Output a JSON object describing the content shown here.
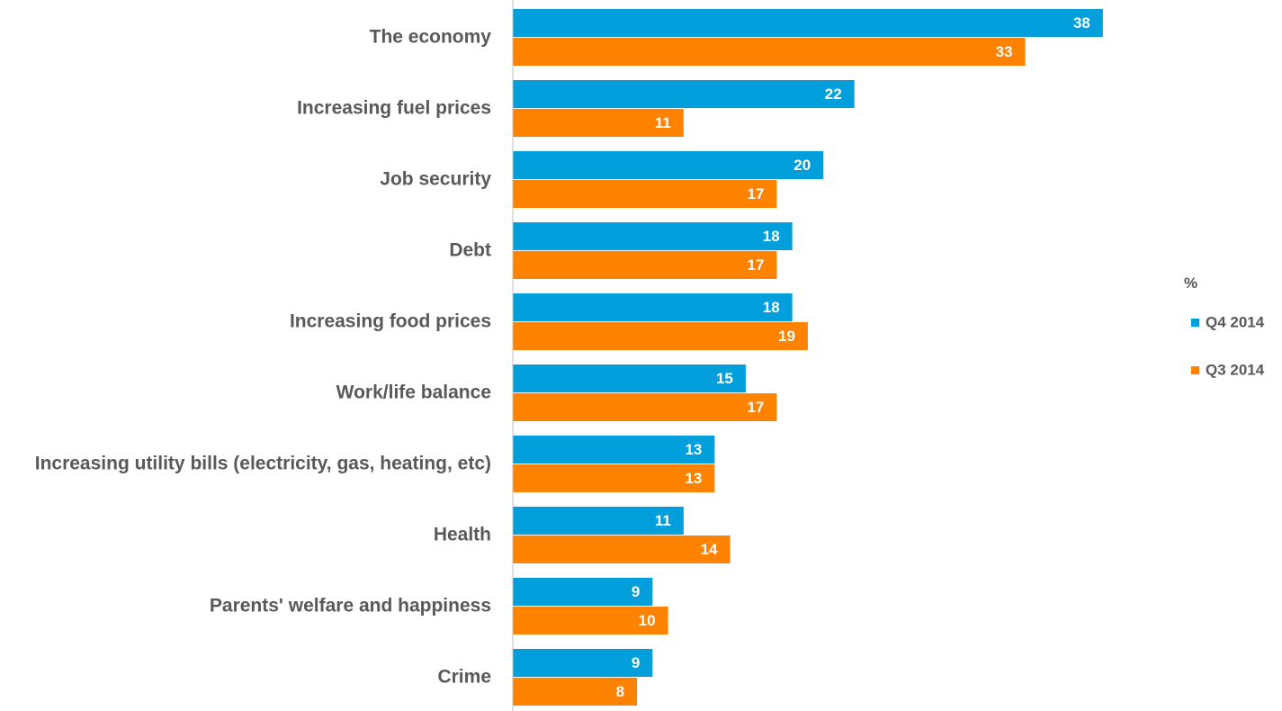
{
  "chart_data": {
    "type": "bar",
    "orientation": "horizontal",
    "categories": [
      "The economy",
      "Increasing fuel prices",
      "Job security",
      "Debt",
      "Increasing food prices",
      "Work/life balance",
      "Increasing utility bills (electricity, gas, heating, etc)",
      "Health",
      "Parents' welfare and happiness",
      "Crime"
    ],
    "series": [
      {
        "name": "Q4 2014",
        "color": "#009fdb",
        "values": [
          38,
          22,
          20,
          18,
          18,
          15,
          13,
          11,
          9,
          9
        ]
      },
      {
        "name": "Q3 2014",
        "color": "#ff8200",
        "values": [
          33,
          11,
          17,
          17,
          19,
          17,
          13,
          14,
          10,
          8
        ]
      }
    ],
    "legend": {
      "title": "%",
      "placement": "right"
    },
    "data_labels": true,
    "grid": false,
    "xlim": [
      0,
      40
    ],
    "axis_color": "#bfbfbf"
  }
}
